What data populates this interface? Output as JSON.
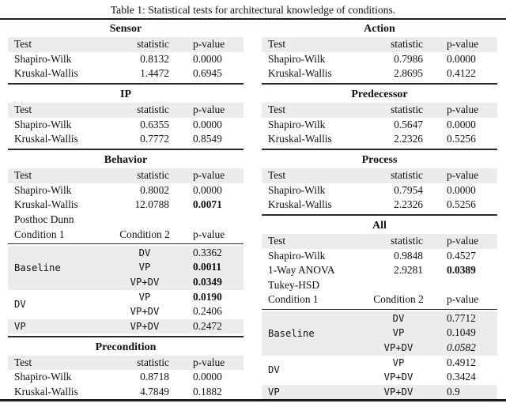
{
  "title": "Table 1: Statistical tests for architectural knowledge of conditions.",
  "colors": {
    "row_shade": "#ececec",
    "rule": "#1c1c1c",
    "text": "#111111",
    "background": "#ffffff"
  },
  "left": {
    "sensor": {
      "title": "Sensor",
      "headers": [
        "Test",
        "statistic",
        "p-value"
      ],
      "rows": [
        [
          "Shapiro-Wilk",
          "0.8132",
          "0.0000"
        ],
        [
          "Kruskal-Wallis",
          "1.4472",
          "0.6945"
        ]
      ]
    },
    "ip": {
      "title": "IP",
      "headers": [
        "Test",
        "statistic",
        "p-value"
      ],
      "rows": [
        [
          "Shapiro-Wilk",
          "0.6355",
          "0.0000"
        ],
        [
          "Kruskal-Wallis",
          "0.7772",
          "0.8549"
        ]
      ]
    },
    "behavior": {
      "title": "Behavior",
      "headers": [
        "Test",
        "statistic",
        "p-value"
      ],
      "rows": [
        [
          "Shapiro-Wilk",
          "0.8002",
          "0.0000"
        ],
        [
          "Kruskal-Wallis",
          "12.0788",
          "0.0071"
        ]
      ],
      "posthoc_title": "Posthoc Dunn",
      "posthoc_headers": [
        "Condition 1",
        "Condition 2",
        "p-value"
      ],
      "groups": [
        {
          "label": "Baseline",
          "rows": [
            [
              "DV",
              "0.3362"
            ],
            [
              "VP",
              "0.0011"
            ],
            [
              "VP+DV",
              "0.0349"
            ]
          ]
        },
        {
          "label": "DV",
          "rows": [
            [
              "VP",
              "0.0190"
            ],
            [
              "VP+DV",
              "0.2406"
            ]
          ]
        },
        {
          "label": "VP",
          "rows": [
            [
              "VP+DV",
              "0.2472"
            ]
          ]
        }
      ]
    },
    "precondition": {
      "title": "Precondition",
      "headers": [
        "Test",
        "statistic",
        "p-value"
      ],
      "rows": [
        [
          "Shapiro-Wilk",
          "0.8718",
          "0.0000"
        ],
        [
          "Kruskal-Wallis",
          "4.7849",
          "0.1882"
        ]
      ]
    }
  },
  "right": {
    "action": {
      "title": "Action",
      "headers": [
        "Test",
        "statistic",
        "p-value"
      ],
      "rows": [
        [
          "Shapiro-Wilk",
          "0.7986",
          "0.0000"
        ],
        [
          "Kruskal-Wallis",
          "2.8695",
          "0.4122"
        ]
      ]
    },
    "predecessor": {
      "title": "Predecessor",
      "headers": [
        "Test",
        "statistic",
        "p-value"
      ],
      "rows": [
        [
          "Shapiro-Wilk",
          "0.5647",
          "0.0000"
        ],
        [
          "Kruskal-Wallis",
          "2.2326",
          "0.5256"
        ]
      ]
    },
    "process": {
      "title": "Process",
      "headers": [
        "Test",
        "statistic",
        "p-value"
      ],
      "rows": [
        [
          "Shapiro-Wilk",
          "0.7954",
          "0.0000"
        ],
        [
          "Kruskal-Wallis",
          "2.2326",
          "0.5256"
        ]
      ]
    },
    "all": {
      "title": "All",
      "headers": [
        "Test",
        "statistic",
        "p-value"
      ],
      "rows": [
        [
          "Shapiro-Wilk",
          "0.9848",
          "0.4527"
        ],
        [
          "1-Way ANOVA",
          "2.9281",
          "0.0389"
        ]
      ],
      "posthoc_title": "Tukey-HSD",
      "posthoc_headers": [
        "Condition 1",
        "Condition 2",
        "p-value"
      ],
      "groups": [
        {
          "label": "Baseline",
          "rows": [
            [
              "DV",
              "0.7712"
            ],
            [
              "VP",
              "0.1049"
            ],
            [
              "VP+DV",
              "0.0582"
            ]
          ]
        },
        {
          "label": "DV",
          "rows": [
            [
              "VP",
              "0.4912"
            ],
            [
              "VP+DV",
              "0.3424"
            ]
          ]
        },
        {
          "label": "VP",
          "rows": [
            [
              "VP+DV",
              "0.9"
            ]
          ]
        }
      ]
    }
  }
}
